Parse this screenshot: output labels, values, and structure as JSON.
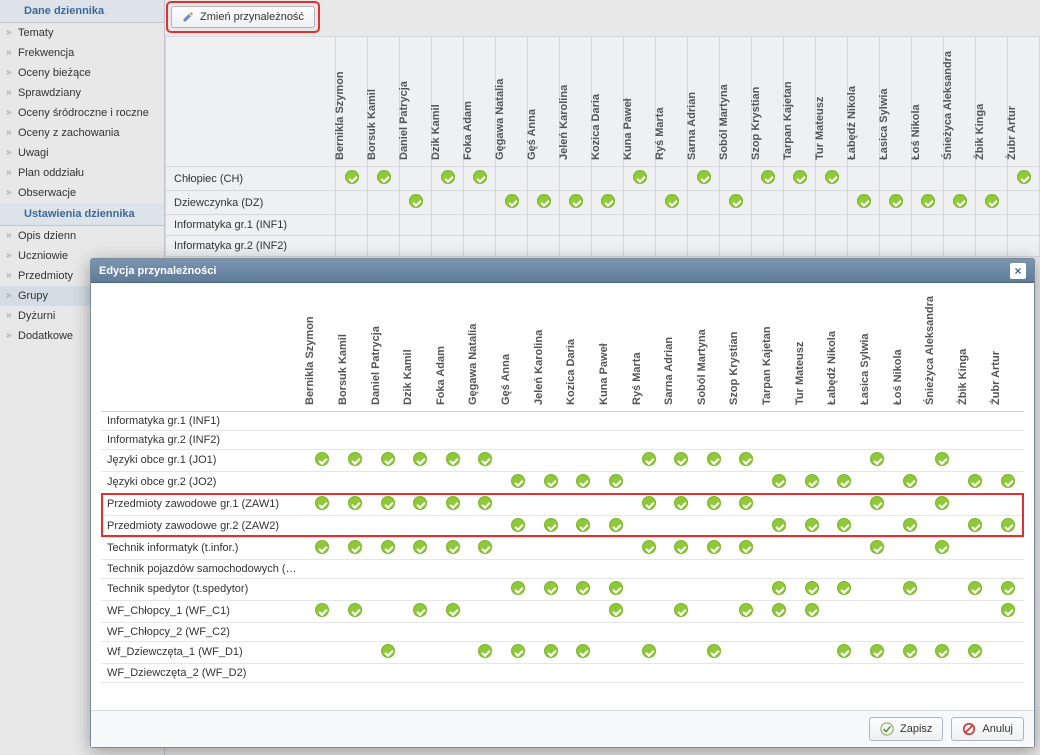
{
  "colors": {
    "accent": "#8fc93a",
    "danger": "#e03030",
    "header_blue": "#5e7b99"
  },
  "sidebar": {
    "section1_title": "Dane dziennika",
    "section2_title": "Ustawienia dziennika",
    "items1": [
      {
        "label": "Tematy"
      },
      {
        "label": "Frekwencja"
      },
      {
        "label": "Oceny bieżące"
      },
      {
        "label": "Sprawdziany"
      },
      {
        "label": "Oceny śródroczne\ni roczne"
      },
      {
        "label": "Oceny z zachowania"
      },
      {
        "label": "Uwagi"
      },
      {
        "label": "Plan oddziału"
      },
      {
        "label": "Obserwacje"
      }
    ],
    "items2": [
      {
        "label": "Opis dzienn"
      },
      {
        "label": "Uczniowie"
      },
      {
        "label": "Przedmioty"
      },
      {
        "label": "Grupy",
        "active": true
      },
      {
        "label": "Dyżurni"
      },
      {
        "label": "Dodatkowe"
      }
    ]
  },
  "toolbar": {
    "edit_label": "Zmień przynależność"
  },
  "students": [
    "Bernikla Szymon",
    "Borsuk Kamil",
    "Daniel Patrycja",
    "Dzik Kamil",
    "Foka Adam",
    "Gęgawa Natalia",
    "Gęś Anna",
    "Jeleń Karolina",
    "Kozica Daria",
    "Kuna Paweł",
    "Ryś Marta",
    "Sarna Adrian",
    "Soból Martyna",
    "Szop Krystian",
    "Tarpan Kajetan",
    "Tur Mateusz",
    "Łabędź Nikola",
    "Łasica Sylwia",
    "Łoś Nikola",
    "Śnieżyca Aleksandra",
    "Żbik Kinga",
    "Żubr Artur"
  ],
  "bg_rows": [
    {
      "label": "Chłopiec (CH)",
      "ticks": [
        0,
        1,
        3,
        4,
        9,
        11,
        13,
        14,
        15,
        21
      ]
    },
    {
      "label": "Dziewczynka (DZ)",
      "ticks": [
        2,
        5,
        6,
        7,
        8,
        10,
        12,
        16,
        17,
        18,
        19,
        20
      ]
    },
    {
      "label": "Informatyka gr.1 (INF1)",
      "ticks": []
    },
    {
      "label": "Informatyka gr.2 (INF2)",
      "ticks": []
    }
  ],
  "modal": {
    "title": "Edycja przynależności",
    "rows": [
      {
        "label": "Informatyka gr.1 (INF1)",
        "ticks": []
      },
      {
        "label": "Informatyka gr.2 (INF2)",
        "ticks": []
      },
      {
        "label": "Języki obce gr.1 (JO1)",
        "ticks": [
          0,
          1,
          2,
          3,
          4,
          5,
          10,
          11,
          12,
          13,
          17,
          19
        ]
      },
      {
        "label": "Języki obce gr.2 (JO2)",
        "ticks": [
          6,
          7,
          8,
          9,
          14,
          15,
          16,
          18,
          20,
          21
        ]
      },
      {
        "label": "Przedmioty zawodowe gr.1 (ZAW1)",
        "ticks": [
          0,
          1,
          2,
          3,
          4,
          5,
          10,
          11,
          12,
          13,
          17,
          19
        ],
        "hl": true
      },
      {
        "label": "Przedmioty zawodowe gr.2 (ZAW2)",
        "ticks": [
          6,
          7,
          8,
          9,
          14,
          15,
          16,
          18,
          20,
          21
        ],
        "hl": true
      },
      {
        "label": "Technik informatyk (t.infor.)",
        "ticks": [
          0,
          1,
          2,
          3,
          4,
          5,
          10,
          11,
          12,
          13,
          17,
          19
        ]
      },
      {
        "label": "Technik pojazdów samochodowych (…",
        "ticks": []
      },
      {
        "label": "Technik spedytor (t.spedytor)",
        "ticks": [
          6,
          7,
          8,
          9,
          14,
          15,
          16,
          18,
          20,
          21
        ]
      },
      {
        "label": "WF_Chłopcy_1 (WF_C1)",
        "ticks": [
          0,
          1,
          3,
          4,
          9,
          11,
          13,
          14,
          15,
          21
        ]
      },
      {
        "label": "WF_Chłopcy_2 (WF_C2)",
        "ticks": []
      },
      {
        "label": "Wf_Dziewczęta_1 (WF_D1)",
        "ticks": [
          2,
          5,
          6,
          7,
          8,
          10,
          12,
          16,
          17,
          18,
          19,
          20
        ]
      },
      {
        "label": "WF_Dziewczęta_2 (WF_D2)",
        "ticks": []
      }
    ],
    "save_label": "Zapisz",
    "cancel_label": "Anuluj"
  }
}
